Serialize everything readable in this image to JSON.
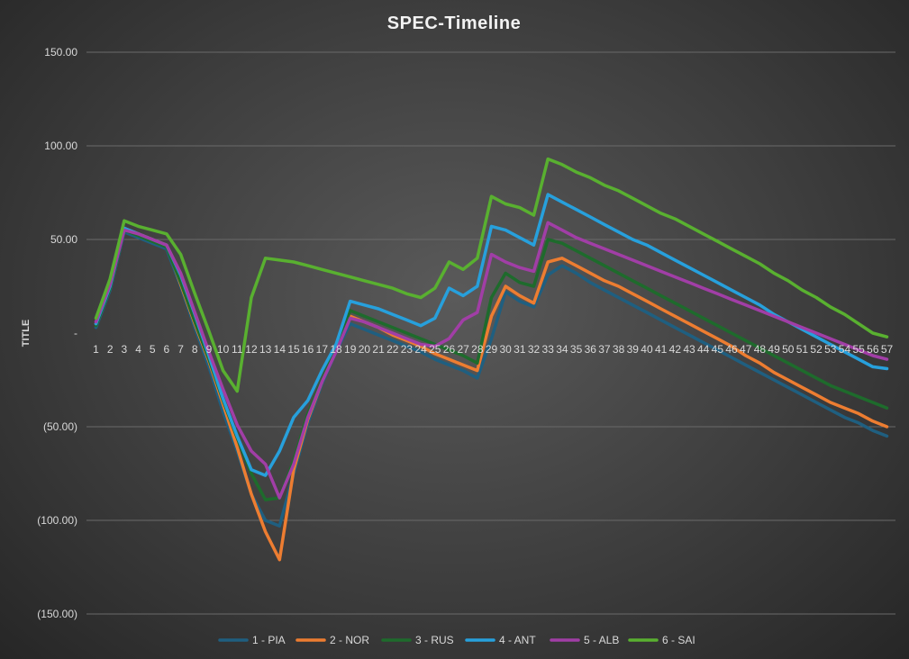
{
  "chart_data": {
    "type": "line",
    "title": "SPEC-Timeline",
    "xlabel": "",
    "ylabel": "TITLE",
    "ylim": [
      -150,
      150
    ],
    "yticks": [
      150,
      100,
      50,
      0,
      -50,
      -100,
      -150
    ],
    "ytick_labels": [
      "150.00",
      "100.00",
      "50.00",
      "-",
      "(50.00)",
      "(100.00)",
      "(150.00)"
    ],
    "grid": true,
    "legend": "bottom",
    "x": [
      1,
      2,
      3,
      4,
      5,
      6,
      7,
      8,
      9,
      10,
      11,
      12,
      13,
      14,
      15,
      16,
      17,
      18,
      19,
      20,
      21,
      22,
      23,
      24,
      25,
      26,
      27,
      28,
      29,
      30,
      31,
      32,
      33,
      34,
      35,
      36,
      37,
      38,
      39,
      40,
      41,
      42,
      43,
      44,
      45,
      46,
      47,
      48,
      49,
      50,
      51,
      52,
      53,
      54,
      55,
      56,
      57
    ],
    "series": [
      {
        "name": "1 - PIA",
        "color": "#1f5f80",
        "values": [
          3,
          23,
          54,
          51,
          48,
          45,
          25,
          3,
          -18,
          -42,
          -63,
          -86,
          -100,
          -103,
          -75,
          -48,
          -27,
          -10,
          5,
          2,
          -1,
          -4,
          -7,
          -10,
          -14,
          -17,
          -20,
          -24,
          -3,
          22,
          17,
          14,
          31,
          36,
          32,
          27,
          23,
          19,
          15,
          11,
          7,
          3,
          -1,
          -5,
          -9,
          -13,
          -17,
          -21,
          -25,
          -29,
          -33,
          -37,
          -41,
          -45,
          -48,
          -52,
          -55
        ]
      },
      {
        "name": "2 - NOR",
        "color": "#ed7d31",
        "values": [
          5,
          25,
          56,
          53,
          50,
          47,
          26,
          5,
          -15,
          -38,
          -61,
          -86,
          -106,
          -121,
          -73,
          -46,
          -26,
          -8,
          9,
          6,
          3,
          -1,
          -4,
          -7,
          -11,
          -14,
          -17,
          -20,
          9,
          25,
          20,
          16,
          38,
          40,
          36,
          32,
          28,
          25,
          21,
          17,
          13,
          9,
          5,
          1,
          -3,
          -7,
          -12,
          -16,
          -21,
          -25,
          -29,
          -33,
          -37,
          -40,
          -43,
          -47,
          -50
        ]
      },
      {
        "name": "3 - RUS",
        "color": "#1e6b2c",
        "values": [
          4,
          24,
          55,
          52,
          49,
          46,
          27,
          6,
          -14,
          -36,
          -56,
          -75,
          -89,
          -88,
          -68,
          -43,
          -25,
          -8,
          12,
          9,
          6,
          3,
          0,
          -3,
          -6,
          -9,
          -12,
          -16,
          19,
          32,
          27,
          25,
          50,
          48,
          44,
          40,
          36,
          32,
          28,
          24,
          20,
          16,
          12,
          8,
          4,
          0,
          -4,
          -8,
          -12,
          -16,
          -20,
          -24,
          -28,
          -31,
          -34,
          -37,
          -40
        ]
      },
      {
        "name": "4 - ANT",
        "color": "#27a0dc",
        "values": [
          5,
          25,
          56,
          53,
          50,
          47,
          31,
          10,
          -12,
          -35,
          -55,
          -73,
          -76,
          -63,
          -45,
          -36,
          -20,
          -6,
          17,
          15,
          13,
          10,
          7,
          4,
          8,
          24,
          20,
          25,
          57,
          55,
          51,
          47,
          74,
          70,
          66,
          62,
          58,
          54,
          50,
          47,
          43,
          39,
          35,
          31,
          27,
          23,
          19,
          15,
          10,
          6,
          2,
          -2,
          -6,
          -10,
          -14,
          -18,
          -19
        ]
      },
      {
        "name": "5 - ALB",
        "color": "#a13ea6",
        "values": [
          6,
          26,
          55,
          53,
          50,
          47,
          32,
          11,
          -10,
          -30,
          -49,
          -63,
          -70,
          -88,
          -70,
          -45,
          -26,
          -10,
          8,
          6,
          3,
          0,
          -3,
          -6,
          -7,
          -3,
          7,
          11,
          42,
          38,
          35,
          33,
          59,
          55,
          51,
          48,
          45,
          42,
          39,
          36,
          33,
          30,
          27,
          24,
          21,
          18,
          15,
          12,
          9,
          6,
          3,
          0,
          -3,
          -6,
          -9,
          -12,
          -14
        ]
      },
      {
        "name": "6 - SAI",
        "color": "#59b030",
        "values": [
          8,
          29,
          60,
          57,
          55,
          53,
          42,
          21,
          1,
          -20,
          -31,
          19,
          40,
          39,
          38,
          36,
          34,
          32,
          30,
          28,
          26,
          24,
          21,
          19,
          24,
          38,
          34,
          40,
          73,
          69,
          67,
          63,
          93,
          90,
          86,
          83,
          79,
          76,
          72,
          68,
          64,
          61,
          57,
          53,
          49,
          45,
          41,
          37,
          32,
          28,
          23,
          19,
          14,
          10,
          5,
          0,
          -2
        ]
      }
    ]
  }
}
